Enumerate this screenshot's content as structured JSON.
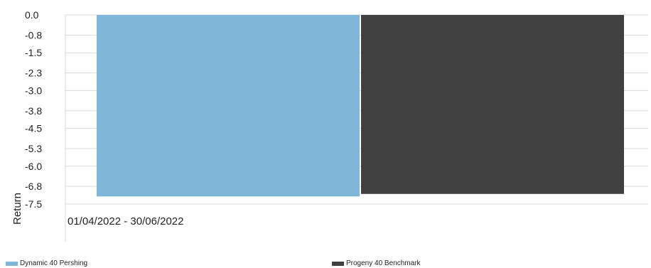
{
  "chart_data": {
    "type": "bar",
    "title": "",
    "xlabel": "",
    "ylabel": "Return",
    "categories": [
      "01/04/2022 - 30/06/2022"
    ],
    "series": [
      {
        "name": "Dynamic 40 Pershing",
        "values": [
          -7.2
        ],
        "color": "#7fb6da"
      },
      {
        "name": "Progeny 40 Benchmark",
        "values": [
          -7.1
        ],
        "color": "#404040"
      }
    ],
    "yticks": [
      "0.0",
      "-0.8",
      "-1.5",
      "-2.3",
      "-3.0",
      "-3.8",
      "-4.5",
      "-5.3",
      "-6.0",
      "-6.8",
      "-7.5"
    ],
    "ylim": [
      -7.5,
      0.0
    ],
    "grid": true,
    "legend_position": "bottom"
  }
}
